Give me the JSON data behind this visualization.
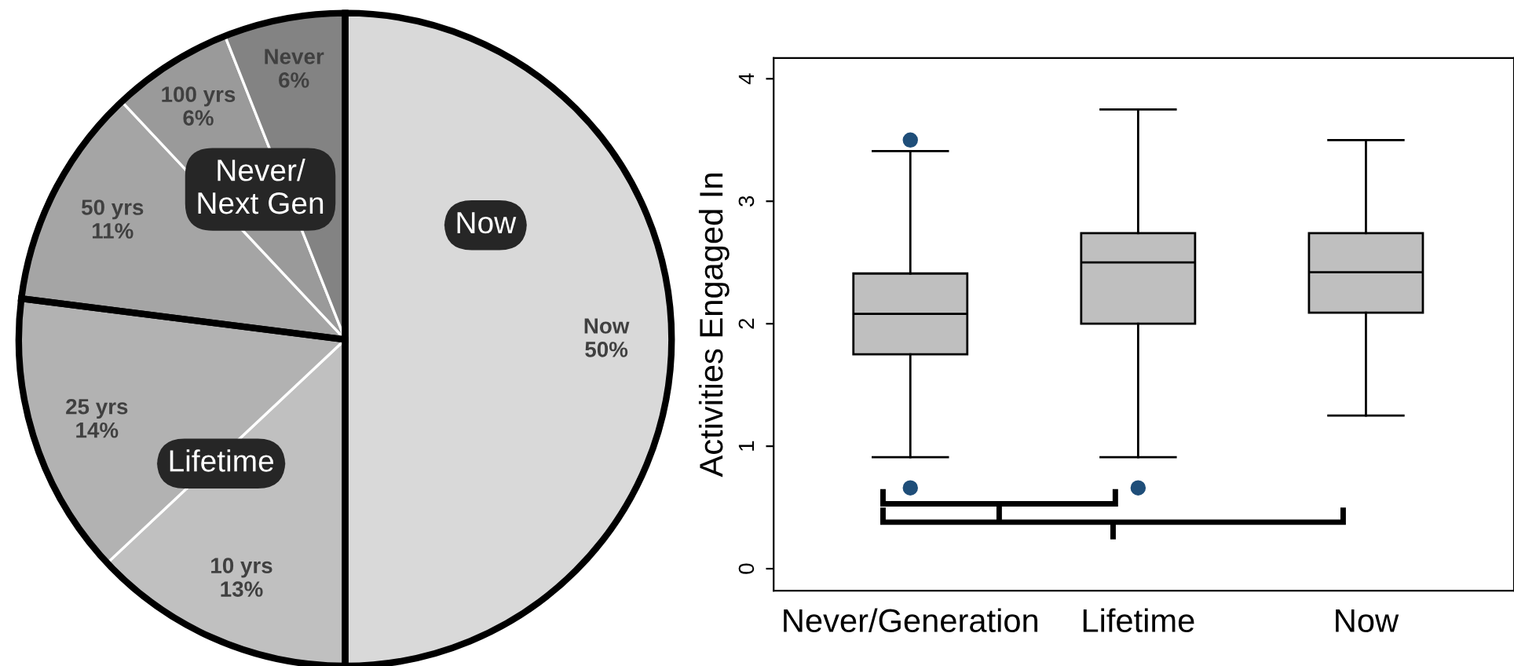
{
  "chart_data": [
    {
      "type": "pie",
      "categories": [
        "Now",
        "10 yrs",
        "25 yrs",
        "50 yrs",
        "100 yrs",
        "Never"
      ],
      "values": [
        50,
        13,
        14,
        11,
        6,
        6
      ],
      "colors": [
        "#d9d9d9",
        "#c0c0c0",
        "#b2b2b2",
        "#a5a5a5",
        "#9a9a9a",
        "#838383"
      ],
      "value_labels": [
        "50%",
        "13%",
        "14%",
        "11%",
        "6%",
        "6%"
      ],
      "annotations": [
        "Now",
        "Lifetime",
        "Never/\nNext Gen"
      ]
    },
    {
      "type": "box",
      "categories": [
        "Never/Generation",
        "Lifetime",
        "Now"
      ],
      "ylabel": "Activities Engaged In",
      "ylim": [
        -0.18,
        4.17
      ],
      "yticks": [
        0,
        1,
        2,
        3,
        4
      ],
      "grid": false,
      "series": [
        {
          "color": "#bfbfbf",
          "boxes": [
            {
              "low": 0.91,
              "q1": 1.75,
              "median": 2.08,
              "q3": 2.41,
              "high": 3.41,
              "outliers": [
                3.5,
                0.66
              ]
            },
            {
              "low": 0.91,
              "q1": 2.0,
              "median": 2.5,
              "q3": 2.74,
              "high": 3.75,
              "outliers": [
                0.66
              ]
            },
            {
              "low": 1.25,
              "q1": 2.09,
              "median": 2.42,
              "q3": 2.74,
              "high": 3.5
            }
          ]
        }
      ]
    }
  ]
}
